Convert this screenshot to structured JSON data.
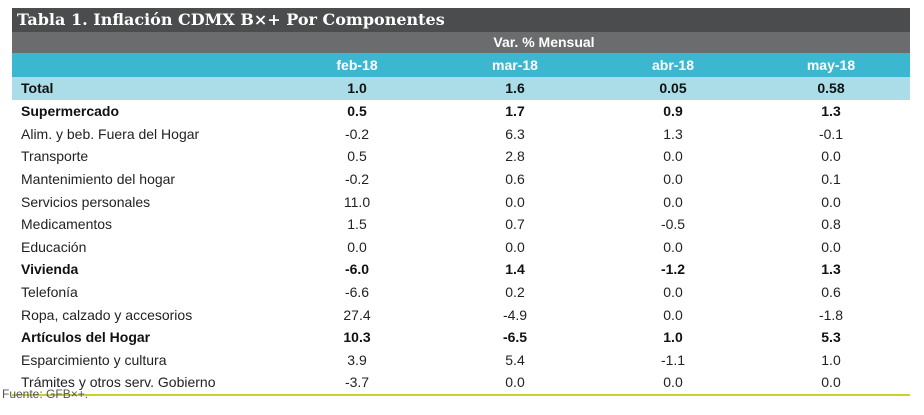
{
  "table": {
    "title": "Tabla 1. Inflación CDMX B×+ Por Componentes",
    "super_header": "Var. % Mensual",
    "columns": [
      "",
      "feb-18",
      "mar-18",
      "abr-18",
      "may-18"
    ],
    "total": {
      "label": "Total",
      "values": [
        "1.0",
        "1.6",
        "0.05",
        "0.58"
      ]
    },
    "rows": [
      {
        "label": "Supermercado",
        "values": [
          "0.5",
          "1.7",
          "0.9",
          "1.3"
        ],
        "bold": true
      },
      {
        "label": "Alim. y beb. Fuera del Hogar",
        "values": [
          "-0.2",
          "6.3",
          "1.3",
          "-0.1"
        ],
        "bold": false
      },
      {
        "label": "Transporte",
        "values": [
          "0.5",
          "2.8",
          "0.0",
          "0.0"
        ],
        "bold": false
      },
      {
        "label": "Mantenimiento del hogar",
        "values": [
          "-0.2",
          "0.6",
          "0.0",
          "0.1"
        ],
        "bold": false
      },
      {
        "label": "Servicios personales",
        "values": [
          "11.0",
          "0.0",
          "0.0",
          "0.0"
        ],
        "bold": false
      },
      {
        "label": "Medicamentos",
        "values": [
          "1.5",
          "0.7",
          "-0.5",
          "0.8"
        ],
        "bold": false
      },
      {
        "label": "Educación",
        "values": [
          "0.0",
          "0.0",
          "0.0",
          "0.0"
        ],
        "bold": false
      },
      {
        "label": "Vivienda",
        "values": [
          "-6.0",
          "1.4",
          "-1.2",
          "1.3"
        ],
        "bold": true
      },
      {
        "label": "Telefonía",
        "values": [
          "-6.6",
          "0.2",
          "0.0",
          "0.6"
        ],
        "bold": false
      },
      {
        "label": "Ropa, calzado y accesorios",
        "values": [
          "27.4",
          "-4.9",
          "0.0",
          "-1.8"
        ],
        "bold": false
      },
      {
        "label": "Artículos del Hogar",
        "values": [
          "10.3",
          "-6.5",
          "1.0",
          "5.3"
        ],
        "bold": true
      },
      {
        "label": "Esparcimiento y cultura",
        "values": [
          "3.9",
          "5.4",
          "-1.1",
          "1.0"
        ],
        "bold": false
      },
      {
        "label": "Trámites y otros serv. Gobierno",
        "values": [
          "-3.7",
          "0.0",
          "0.0",
          "0.0"
        ],
        "bold": false
      }
    ]
  },
  "source": "Fuente: GFB×+.",
  "colors": {
    "title_bg": "#4a4c4e",
    "super_bg": "#6b6c6e",
    "header_bg": "#3bb8cf",
    "total_bg": "#aadde8",
    "rule": "#c9d12a"
  }
}
